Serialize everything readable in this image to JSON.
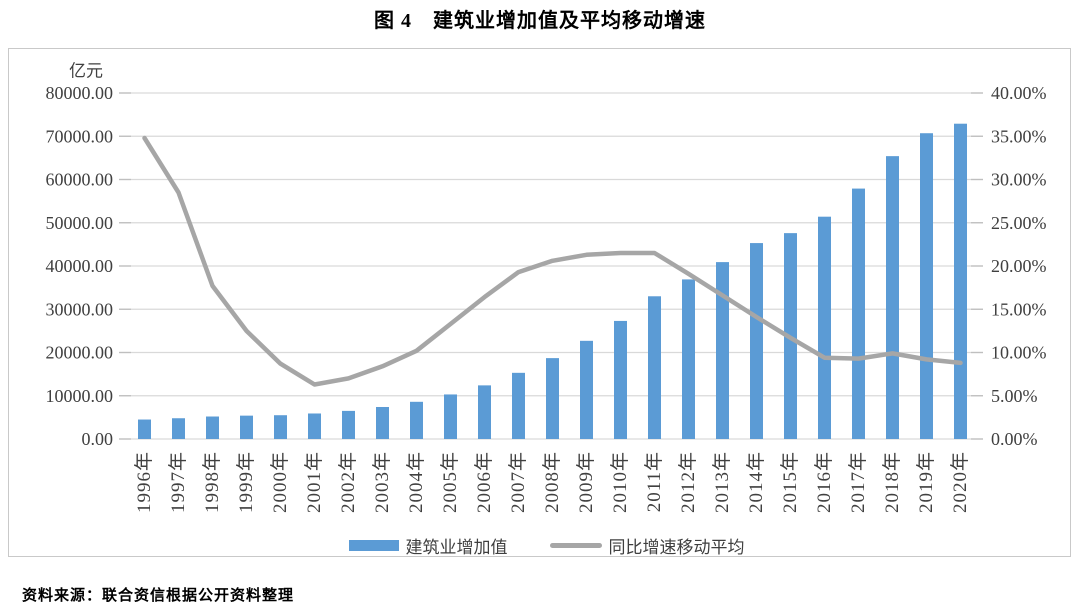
{
  "page": {
    "title": "图 4　建筑业增加值及平均移动增速",
    "source_note": "资料来源：联合资信根据公开资料整理"
  },
  "chart_data": {
    "type": "bar",
    "combo": "bar + line (dual axis)",
    "title": "图 4　建筑业增加值及平均移动增速",
    "categories": [
      "1996年",
      "1997年",
      "1998年",
      "1999年",
      "2000年",
      "2001年",
      "2002年",
      "2003年",
      "2004年",
      "2005年",
      "2006年",
      "2007年",
      "2008年",
      "2009年",
      "2010年",
      "2011年",
      "2012年",
      "2013年",
      "2014年",
      "2015年",
      "2016年",
      "2017年",
      "2018年",
      "2019年",
      "2020年"
    ],
    "series": [
      {
        "name": "建筑业增加值",
        "type": "bar",
        "axis": "left",
        "color": "#5B9BD5",
        "values": [
          4500,
          4800,
          5200,
          5400,
          5500,
          5900,
          6500,
          7400,
          8600,
          10300,
          12400,
          15300,
          18700,
          22700,
          27300,
          33000,
          36900,
          40900,
          45300,
          47600,
          51400,
          57900,
          65400,
          70700,
          72900
        ]
      },
      {
        "name": "同比增速移动平均",
        "type": "line",
        "axis": "right",
        "color": "#A6A6A6",
        "values_pct": [
          34.8,
          28.5,
          17.7,
          12.5,
          8.7,
          6.3,
          7.0,
          8.4,
          10.2,
          13.3,
          16.4,
          19.3,
          20.6,
          21.3,
          21.5,
          21.5,
          19.1,
          16.6,
          14.1,
          11.7,
          9.4,
          9.3,
          9.9,
          9.2,
          8.8
        ]
      }
    ],
    "left_axis": {
      "unit": "亿元",
      "min": 0,
      "max": 80000,
      "step": 10000,
      "tick_labels": [
        "80000.00",
        "70000.00",
        "60000.00",
        "50000.00",
        "40000.00",
        "30000.00",
        "20000.00",
        "10000.00",
        "0.00"
      ]
    },
    "right_axis": {
      "min": 0,
      "max": 40,
      "step": 5,
      "tick_labels": [
        "40.00%",
        "35.00%",
        "30.00%",
        "25.00%",
        "20.00%",
        "15.00%",
        "10.00%",
        "5.00%",
        "0.00%"
      ]
    },
    "grid": true,
    "legend_position": "bottom",
    "colors": {
      "bar": "#5B9BD5",
      "line": "#A6A6A6",
      "gridline": "#D9D9D9",
      "tick": "#BFBFBF",
      "axis_text": "#404040",
      "border": "#C9C9C9"
    }
  }
}
